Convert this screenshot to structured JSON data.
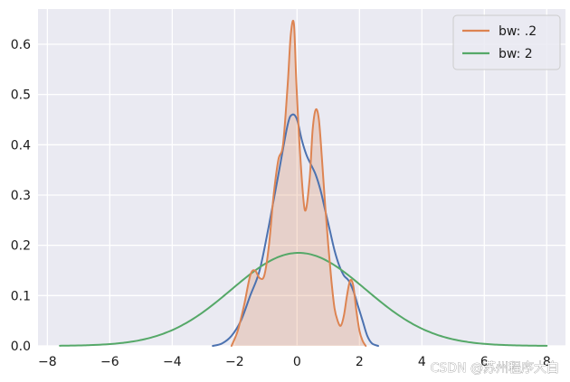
{
  "chart_data": {
    "type": "line",
    "title": "",
    "xlabel": "",
    "ylabel": "",
    "xlim": [
      -8.3,
      8.6
    ],
    "ylim": [
      0,
      0.67
    ],
    "x_ticks": [
      -8,
      -6,
      -4,
      -2,
      0,
      2,
      4,
      6,
      8
    ],
    "y_ticks": [
      0.0,
      0.1,
      0.2,
      0.3,
      0.4,
      0.5,
      0.6
    ],
    "x_tick_labels": [
      "−8",
      "−6",
      "−4",
      "−2",
      "0",
      "2",
      "4",
      "6",
      "8"
    ],
    "y_tick_labels": [
      "0.0",
      "0.1",
      "0.2",
      "0.3",
      "0.4",
      "0.5",
      "0.6"
    ],
    "grid": true,
    "background_color": "#eaeaf2",
    "legend": {
      "placement": "top-right",
      "entries": [
        {
          "label": "bw: .2",
          "color": "#dd8452"
        },
        {
          "label": "bw: 2",
          "color": "#55a868"
        }
      ]
    },
    "series": [
      {
        "color": "#4c72b0",
        "filled": false,
        "x": [
          -2.7,
          -2.4,
          -2.1,
          -1.8,
          -1.5,
          -1.2,
          -0.9,
          -0.6,
          -0.3,
          -0.15,
          0.0,
          0.15,
          0.3,
          0.45,
          0.6,
          0.75,
          0.9,
          1.05,
          1.2,
          1.35,
          1.5,
          1.65,
          1.8,
          1.95,
          2.1,
          2.25,
          2.4,
          2.6
        ],
        "values": [
          0.0,
          0.005,
          0.02,
          0.05,
          0.1,
          0.15,
          0.24,
          0.34,
          0.44,
          0.46,
          0.45,
          0.41,
          0.38,
          0.36,
          0.34,
          0.31,
          0.27,
          0.23,
          0.19,
          0.16,
          0.14,
          0.13,
          0.11,
          0.08,
          0.05,
          0.02,
          0.005,
          0.0
        ]
      },
      {
        "name": "bw: .2",
        "color": "#dd8452",
        "filled": true,
        "x": [
          -2.1,
          -1.9,
          -1.7,
          -1.5,
          -1.35,
          -1.2,
          -1.05,
          -0.9,
          -0.75,
          -0.6,
          -0.45,
          -0.3,
          -0.2,
          -0.1,
          -0.02,
          0.1,
          0.25,
          0.4,
          0.5,
          0.6,
          0.7,
          0.8,
          0.9,
          1.0,
          1.1,
          1.2,
          1.3,
          1.4,
          1.5,
          1.6,
          1.7,
          1.8,
          1.9,
          2.0,
          2.1,
          2.2
        ],
        "values": [
          0.0,
          0.03,
          0.08,
          0.14,
          0.15,
          0.135,
          0.14,
          0.2,
          0.3,
          0.37,
          0.4,
          0.52,
          0.62,
          0.64,
          0.52,
          0.38,
          0.27,
          0.33,
          0.43,
          0.47,
          0.45,
          0.37,
          0.28,
          0.2,
          0.13,
          0.075,
          0.05,
          0.04,
          0.06,
          0.1,
          0.13,
          0.12,
          0.07,
          0.03,
          0.01,
          0.0
        ]
      },
      {
        "name": "bw: 2",
        "color": "#55a868",
        "filled": false,
        "gaussian": {
          "mean": 0.05,
          "sd": 2.15,
          "peak": 0.185,
          "x_min": -7.6,
          "x_max": 8.0
        }
      }
    ]
  },
  "watermark": "CSDN @苏州程序大白"
}
